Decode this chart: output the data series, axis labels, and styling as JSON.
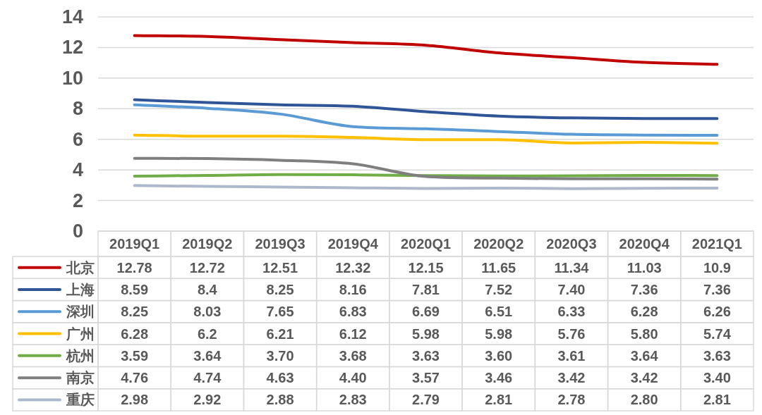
{
  "chart_data": {
    "type": "line",
    "categories": [
      "2019Q1",
      "2019Q2",
      "2019Q3",
      "2019Q4",
      "2020Q1",
      "2020Q2",
      "2020Q3",
      "2020Q4",
      "2021Q1"
    ],
    "series": [
      {
        "name": "北京",
        "color": "#c00000",
        "values": [
          12.78,
          12.72,
          12.51,
          12.32,
          12.15,
          11.65,
          11.34,
          11.03,
          10.9
        ],
        "value_labels": [
          "12.78",
          "12.72",
          "12.51",
          "12.32",
          "12.15",
          "11.65",
          "11.34",
          "11.03",
          "10.9"
        ]
      },
      {
        "name": "上海",
        "color": "#2f5597",
        "values": [
          8.59,
          8.4,
          8.25,
          8.16,
          7.81,
          7.52,
          7.4,
          7.36,
          7.36
        ],
        "value_labels": [
          "8.59",
          "8.4",
          "8.25",
          "8.16",
          "7.81",
          "7.52",
          "7.40",
          "7.36",
          "7.36"
        ]
      },
      {
        "name": "深圳",
        "color": "#5b9bd5",
        "values": [
          8.25,
          8.03,
          7.65,
          6.83,
          6.69,
          6.51,
          6.33,
          6.28,
          6.26
        ],
        "value_labels": [
          "8.25",
          "8.03",
          "7.65",
          "6.83",
          "6.69",
          "6.51",
          "6.33",
          "6.28",
          "6.26"
        ]
      },
      {
        "name": "广州",
        "color": "#ffc000",
        "values": [
          6.28,
          6.2,
          6.21,
          6.12,
          5.98,
          5.98,
          5.76,
          5.8,
          5.74
        ],
        "value_labels": [
          "6.28",
          "6.2",
          "6.21",
          "6.12",
          "5.98",
          "5.98",
          "5.76",
          "5.80",
          "5.74"
        ]
      },
      {
        "name": "杭州",
        "color": "#70ad47",
        "values": [
          3.59,
          3.64,
          3.7,
          3.68,
          3.63,
          3.6,
          3.61,
          3.64,
          3.63
        ],
        "value_labels": [
          "3.59",
          "3.64",
          "3.70",
          "3.68",
          "3.63",
          "3.60",
          "3.61",
          "3.64",
          "3.63"
        ]
      },
      {
        "name": "南京",
        "color": "#7f7f7f",
        "values": [
          4.76,
          4.74,
          4.63,
          4.4,
          3.57,
          3.46,
          3.42,
          3.42,
          3.4
        ],
        "value_labels": [
          "4.76",
          "4.74",
          "4.63",
          "4.40",
          "3.57",
          "3.46",
          "3.42",
          "3.42",
          "3.40"
        ]
      },
      {
        "name": "重庆",
        "color": "#adb9ca",
        "values": [
          2.98,
          2.92,
          2.88,
          2.83,
          2.79,
          2.81,
          2.78,
          2.8,
          2.81
        ],
        "value_labels": [
          "2.98",
          "2.92",
          "2.88",
          "2.83",
          "2.79",
          "2.81",
          "2.78",
          "2.80",
          "2.81"
        ]
      }
    ],
    "ylim": [
      0,
      14
    ],
    "yticks": [
      0,
      2,
      4,
      6,
      8,
      10,
      12,
      14
    ],
    "grid": "y",
    "legend": "bottom"
  }
}
